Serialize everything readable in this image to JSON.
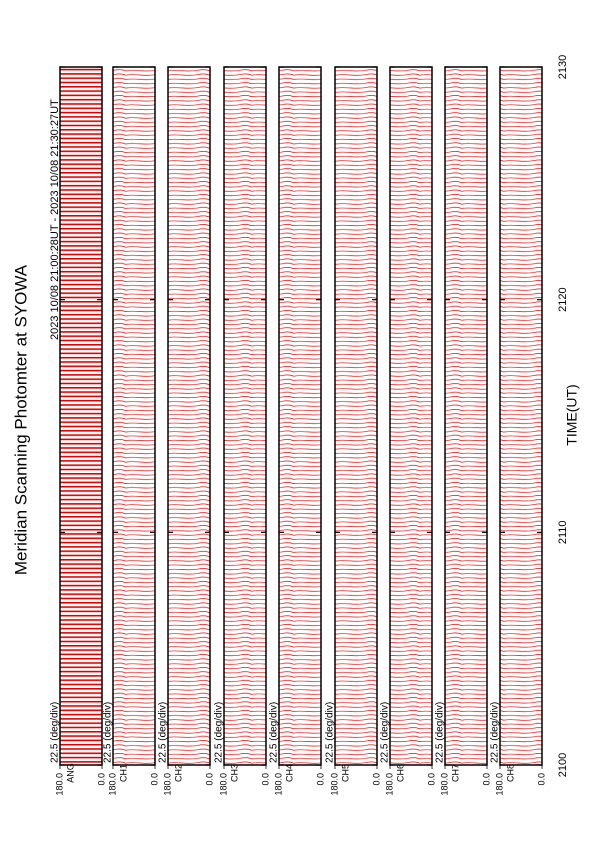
{
  "chart_data": {
    "type": "line",
    "title": "Meridian Scanning Photomter at SYOWA",
    "subtitle": "2023 10/08 21:00:28UT - 2023 10/08 21:30:27UT",
    "x_label": "TIME(UT)",
    "xlim": [
      2100,
      2130
    ],
    "xticks": [
      2100,
      2110,
      2120,
      2130
    ],
    "ylim": [
      180,
      0
    ],
    "yticks": [
      {
        "value": 180,
        "label": "180.0"
      },
      {
        "value": 0,
        "label": "0.0"
      }
    ],
    "color": "#ff0000",
    "panels": [
      {
        "name": "ANG",
        "scale": "22.5 (deg/div)"
      },
      {
        "name": "CH1",
        "scale": "22.5 (deg/div)"
      },
      {
        "name": "CH2",
        "scale": "22.5 (deg/div)"
      },
      {
        "name": "CH3",
        "scale": "22.5 (deg/div)"
      },
      {
        "name": "CH4",
        "scale": "22.5 (deg/div)"
      },
      {
        "name": "CH5",
        "scale": "22.5 (deg/div)"
      },
      {
        "name": "CH6",
        "scale": "22.5 (deg/div)"
      },
      {
        "name": "CH7",
        "scale": "22.5 (deg/div)"
      },
      {
        "name": "CH8",
        "scale": "22.5 (deg/div)"
      }
    ]
  }
}
